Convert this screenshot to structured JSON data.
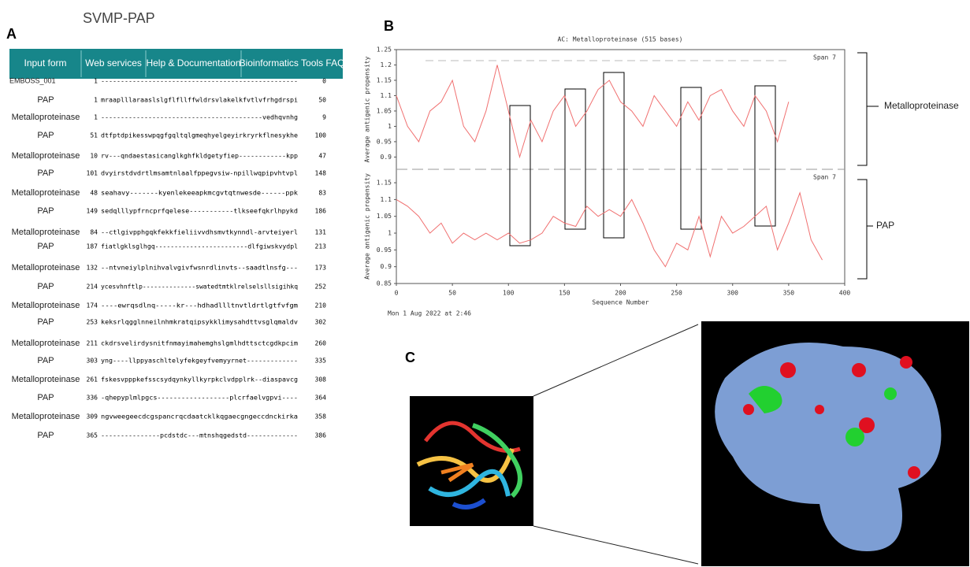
{
  "title": "SVMP-PAP",
  "panel_labels": [
    "A",
    "B",
    "C"
  ],
  "alignment": {
    "nav": [
      "Input form",
      "Web services",
      "Help & Documentation",
      "Bioinformatics Tools FAQ"
    ],
    "rows": [
      [
        "EMBOSS_001",
        1,
        "--------------------------------------------------",
        0
      ],
      [
        "PAP",
        1,
        "mraaplllaraaslslgflfllffwldrsvlakelkfvtlvfrhgdrspi",
        50
      ],
      [
        "Metalloproteinase",
        1,
        "-----------------------------------------vedhqvnhg",
        9
      ],
      [
        "PAP",
        51,
        "dtfptdpikesswpqgfgqltqlgmeqhyelgeyirkryrkflnesykhe",
        100
      ],
      [
        "Metalloproteinase",
        10,
        "rv---qndaestasicanglkghfkldgetyfiep------------kpp",
        47
      ],
      [
        "PAP",
        101,
        "dvyirstdvdrtlmsamtnlaalfppegvsiw-npillwqpipvhtvpl",
        148
      ],
      [
        "Metalloproteinase",
        48,
        "seahavy-------kyenlekeeapkmcgvtqtnwesde------ppk",
        83
      ],
      [
        "PAP",
        149,
        "sedqlllypfrncprfqelese-----------tlkseefqkrlhpykd",
        186
      ],
      [
        "Metalloproteinase",
        84,
        "--ctlgivpphgqkfekkfieliivvdhsmvtkynndl-arvteiyerl",
        131
      ],
      [
        "PAP",
        187,
        "fiatlgklsglhgq------------------------dlfgiwskvydpl",
        213
      ],
      [
        "Metalloproteinase",
        132,
        "--ntvneiylplnihvalvgivfwsnrdlinvts--saadtlnsfg---",
        173
      ],
      [
        "PAP",
        214,
        "ycesvhnftlp--------------swatedtmtklrelselsllsigihkq",
        252
      ],
      [
        "Metalloproteinase",
        174,
        "----ewrqsdlnq-----kr---hdhadllltnvtldrtlgtfvfgm",
        210
      ],
      [
        "PAP",
        253,
        "keksrlqgglnneilnhmkratqipsykklimysahdttvsglqmaldv",
        302
      ],
      [
        "Metalloproteinase",
        211,
        "ckdrsvelirdysnitfnmayimahemghslgmlhdttsctcgdkpcim",
        260
      ],
      [
        "PAP",
        303,
        "yng----llppyaschltelyfekgeyfvemyyrnet-------------",
        335
      ],
      [
        "Metalloproteinase",
        261,
        "fskesvpppkefsscsydqynkyllkyrpkclvdpplrk--diaspavcg",
        308
      ],
      [
        "PAP",
        336,
        "-qhepyplmlpgcs------------------plcrfaelvgpvi----",
        364
      ],
      [
        "Metalloproteinase",
        309,
        "ngvweegeecdcgspancrqcdaatcklkqgaecgngeccdnckirka",
        358
      ],
      [
        "PAP",
        365,
        "---------------pcdstdc---mtnshqgedstd-------------",
        386
      ]
    ]
  },
  "plot_title": "AC: Metalloproteinase (515 bases)",
  "plot_footer": "Mon 1 Aug 2022 at 2:46",
  "chart_data": [
    {
      "type": "line",
      "ylabel": "Average antigenic propensity",
      "span_label": "Span 7",
      "x": [
        0,
        10,
        20,
        30,
        40,
        50,
        60,
        70,
        80,
        90,
        100,
        110,
        120,
        130,
        140,
        150,
        160,
        170,
        180,
        190,
        200,
        210,
        220,
        230,
        240,
        250,
        260,
        270,
        280,
        290,
        300,
        310,
        320,
        330,
        340,
        350
      ],
      "series": [
        {
          "name": "Metalloproteinase",
          "color": "#f07070",
          "values": [
            1.1,
            1.0,
            0.95,
            1.05,
            1.08,
            1.15,
            1.0,
            0.95,
            1.05,
            1.2,
            1.05,
            0.9,
            1.02,
            0.95,
            1.05,
            1.1,
            1.0,
            1.05,
            1.12,
            1.15,
            1.08,
            1.05,
            1.0,
            1.1,
            1.05,
            1.0,
            1.08,
            1.02,
            1.1,
            1.12,
            1.05,
            1.0,
            1.1,
            1.05,
            0.95,
            1.08
          ]
        }
      ],
      "xlim": [
        0,
        400
      ],
      "ylim": [
        0.86,
        1.25
      ],
      "yticks": [
        {
          "value": 1.25,
          "label": "1.25"
        },
        {
          "value": 1.2,
          "label": "1.2"
        },
        {
          "value": 1.15,
          "label": "1.15"
        },
        {
          "value": 1.1,
          "label": "1.1"
        },
        {
          "value": 1.05,
          "label": "1.05"
        },
        1,
        {
          "value": 0.95,
          "label": "0.95"
        },
        {
          "value": 0.9,
          "label": "0.9"
        }
      ]
    },
    {
      "type": "line",
      "ylabel": "Average antigenic propensity",
      "span_label": "Span 7",
      "xlabel": "Sequence Number",
      "x": [
        0,
        10,
        20,
        30,
        40,
        50,
        60,
        70,
        80,
        90,
        100,
        110,
        120,
        130,
        140,
        150,
        160,
        170,
        180,
        190,
        200,
        210,
        220,
        230,
        240,
        250,
        260,
        270,
        280,
        290,
        300,
        310,
        320,
        330,
        340,
        350,
        360,
        370,
        380
      ],
      "series": [
        {
          "name": "PAP",
          "color": "#f07070",
          "values": [
            1.1,
            1.08,
            1.05,
            1.0,
            1.03,
            0.97,
            1.0,
            0.98,
            1.0,
            0.98,
            1.0,
            0.97,
            0.98,
            1.0,
            1.05,
            1.03,
            1.02,
            1.08,
            1.05,
            1.07,
            1.05,
            1.1,
            1.03,
            0.95,
            0.9,
            0.97,
            0.95,
            1.05,
            0.93,
            1.05,
            1.0,
            1.02,
            1.05,
            1.08,
            0.95,
            1.03,
            1.12,
            0.98,
            0.92
          ]
        }
      ],
      "xlim": [
        0,
        400
      ],
      "ylim": [
        0.85,
        1.19
      ],
      "xticks": [
        0,
        50,
        100,
        150,
        200,
        250,
        300,
        350,
        400
      ],
      "yticks": [
        {
          "value": 1.15,
          "label": "1.15"
        },
        {
          "value": 1.1,
          "label": "1.1"
        },
        {
          "value": 1.05,
          "label": "1.05"
        },
        1,
        {
          "value": 0.95,
          "label": "0.95"
        },
        {
          "value": 0.9,
          "label": "0.9"
        },
        {
          "value": 0.85,
          "label": "0.85"
        }
      ]
    }
  ]
}
